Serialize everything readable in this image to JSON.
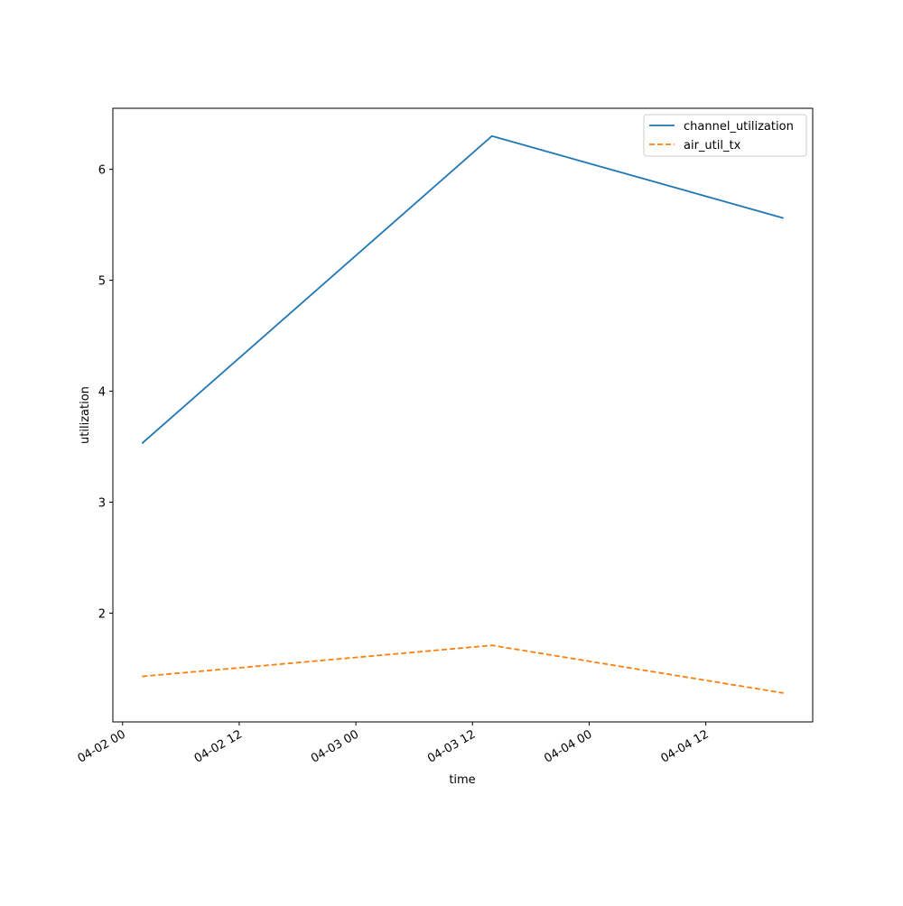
{
  "chart_data": {
    "type": "line",
    "x_label": "time",
    "y_label": "utilization",
    "x": [
      "04-02 02",
      "04-03 14",
      "04-04 20"
    ],
    "series": [
      {
        "name": "channel_utilization",
        "color": "#1f77b4",
        "dash": "solid",
        "values": [
          3.53,
          6.3,
          5.56
        ]
      },
      {
        "name": "air_util_tx",
        "color": "#ff7f0e",
        "dash": "dashed",
        "values": [
          1.43,
          1.71,
          1.28
        ]
      }
    ],
    "xlim": [
      "04-01 23",
      "04-04 23"
    ],
    "xticks": [
      "04-02 00",
      "04-02 12",
      "04-03 00",
      "04-03 12",
      "04-04 00",
      "04-04 12"
    ],
    "ylim": [
      1.02,
      6.55
    ],
    "yticks": [
      2,
      3,
      4,
      5,
      6
    ],
    "grid": false,
    "legend": "upper right"
  }
}
